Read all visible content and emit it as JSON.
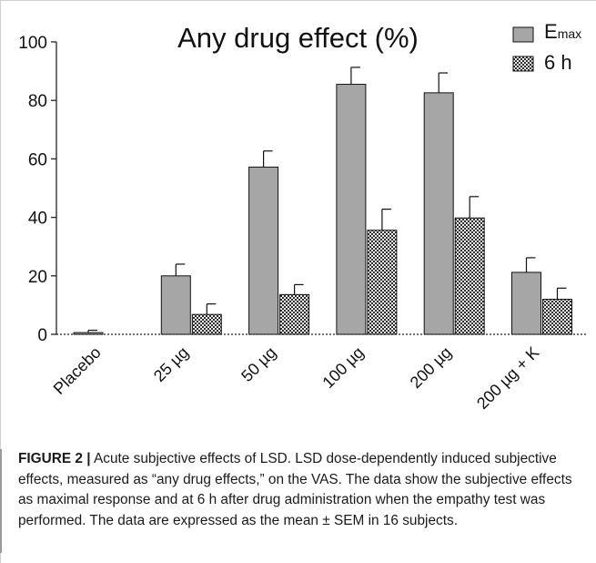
{
  "chart_data": {
    "type": "bar",
    "title": "Any drug effect (%)",
    "categories": [
      "Placebo",
      "25 µg",
      "50 µg",
      "100 µg",
      "200 µg",
      "200 µg + K"
    ],
    "series": [
      {
        "name": "E",
        "name_subscript": "max",
        "pattern": "solid",
        "color": "#a6a6a6",
        "values": [
          0.6,
          20,
          57.2,
          85.5,
          82.6,
          21.2
        ],
        "errors": [
          0.8,
          4,
          5.5,
          5.8,
          6.8,
          5
        ]
      },
      {
        "name": "6 h",
        "pattern": "checkered",
        "color": "#4d4d4d",
        "values": [
          0,
          6.8,
          13.6,
          35.6,
          39.8,
          12
        ],
        "errors": [
          0,
          3.6,
          3.4,
          7.2,
          7.3,
          3.8
        ]
      }
    ],
    "ylim": [
      0,
      100
    ],
    "yticks": [
      0,
      20,
      40,
      60,
      80,
      100
    ],
    "ylabel": "",
    "xlabel": "",
    "grid": false,
    "legend": "top-right"
  },
  "caption": {
    "label": "FIGURE 2 |",
    "text": "Acute subjective effects of LSD. LSD dose-dependently induced subjective effects, measured as “any drug effects,” on the VAS. The data show the subjective effects as maximal response and at 6 h after drug administration when the empathy test was performed. The data are expressed as the mean ± SEM in 16 subjects."
  }
}
